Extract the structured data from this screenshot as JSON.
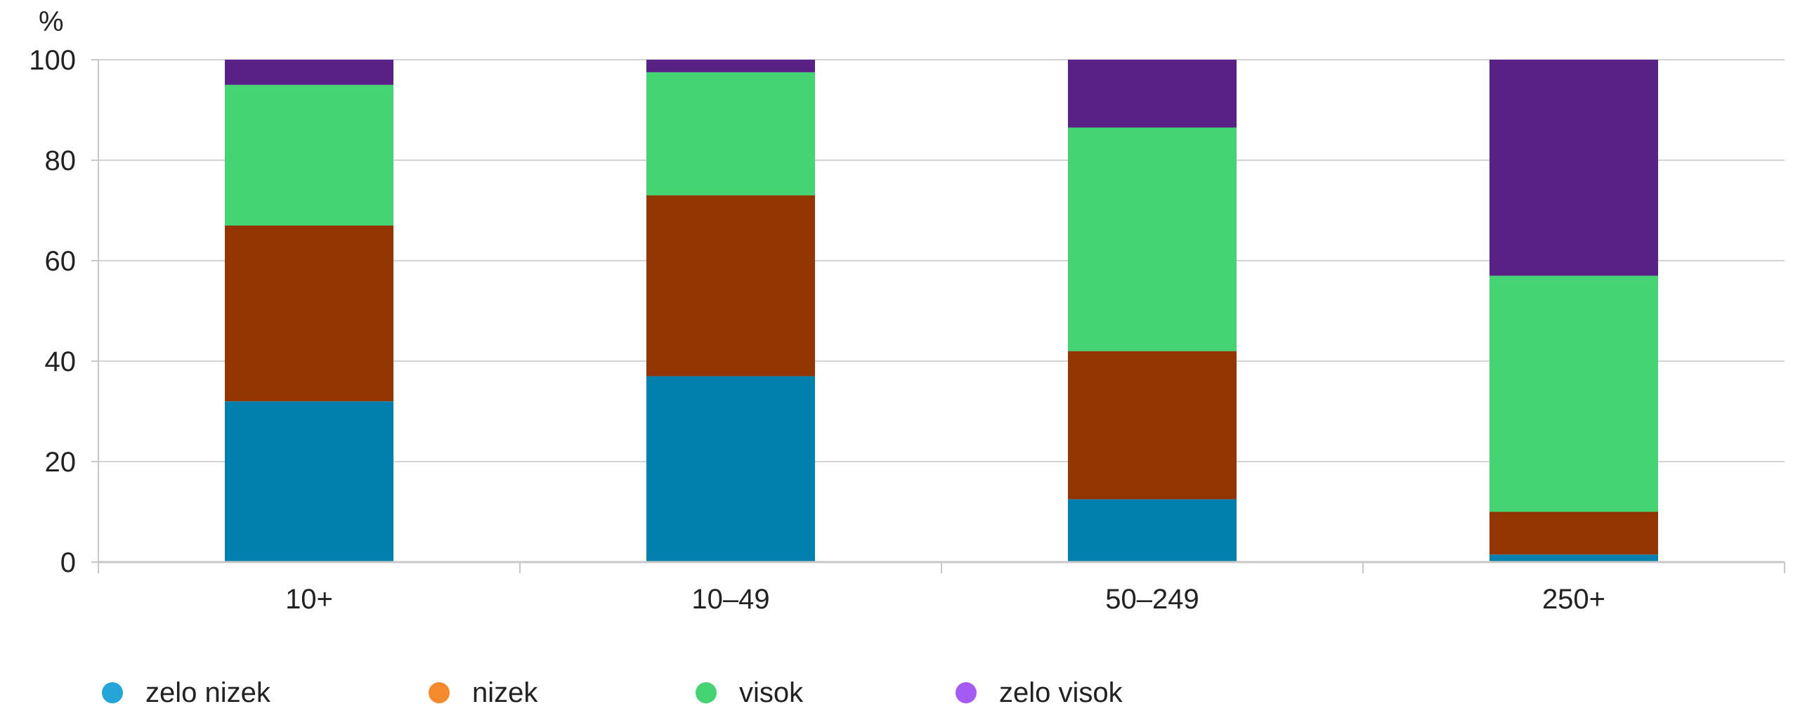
{
  "chart_data": {
    "type": "bar",
    "stacked": true,
    "yunit": "%",
    "ylim": [
      0,
      100
    ],
    "yticks": [
      0,
      20,
      40,
      60,
      80,
      100
    ],
    "grid": true,
    "legend_position": "bottom",
    "categories": [
      "10+",
      "10–49",
      "50–249",
      "250+"
    ],
    "series": [
      {
        "name": "zelo nizek",
        "bar_color": "#0080AD",
        "legend_color": "#24A6DB",
        "values": [
          32,
          37,
          12.5,
          1.5
        ]
      },
      {
        "name": "nizek",
        "bar_color": "#933500",
        "legend_color": "#F58A2C",
        "values": [
          35,
          36,
          29.5,
          8.5
        ]
      },
      {
        "name": "visok",
        "bar_color": "#45D474",
        "legend_color": "#45D474",
        "values": [
          28,
          24.5,
          44.5,
          47
        ]
      },
      {
        "name": "zelo visok",
        "bar_color": "#582185",
        "legend_color": "#A65AF5",
        "values": [
          5,
          2.5,
          13.5,
          43
        ]
      }
    ]
  }
}
